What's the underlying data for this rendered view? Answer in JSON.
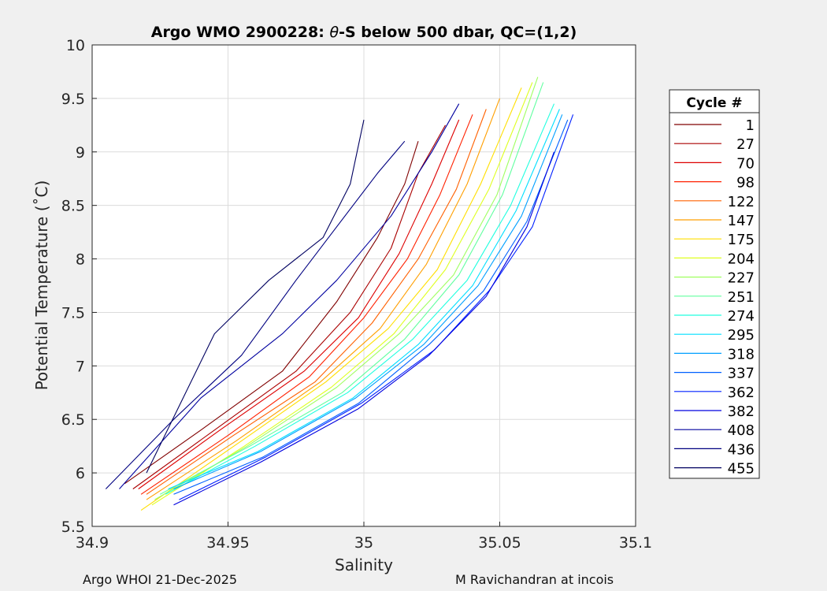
{
  "chart_data": {
    "type": "line",
    "title": "Argo WMO 2900228: θ-S below 500 dbar,  QC=(1,2)",
    "title_parts": {
      "prefix": "Argo WMO 2900228: ",
      "theta": "θ",
      "suffix": "-S below 500 dbar,  QC=(1,2)"
    },
    "xlabel": "Salinity",
    "ylabel": "Potential Temperature (˚C)",
    "xlim": [
      34.9,
      35.1
    ],
    "ylim": [
      5.5,
      10
    ],
    "xticks": [
      34.9,
      34.95,
      35,
      35.05,
      35.1
    ],
    "xtick_labels": [
      "34.9",
      "34.95",
      "35",
      "35.05",
      "35.1"
    ],
    "yticks": [
      5.5,
      6,
      6.5,
      7,
      7.5,
      8,
      8.5,
      9,
      9.5,
      10
    ],
    "ytick_labels": [
      "5.5",
      "6",
      "6.5",
      "7",
      "7.5",
      "8",
      "8.5",
      "9",
      "9.5",
      "10"
    ],
    "grid": true,
    "legend_title": "Cycle #",
    "legend_position": "right",
    "series": [
      {
        "name": "1",
        "color": "#800000",
        "x": [
          34.912,
          34.94,
          34.97,
          34.99,
          35.005,
          35.015,
          35.02
        ],
        "y": [
          5.9,
          6.4,
          6.95,
          7.6,
          8.2,
          8.7,
          9.1
        ]
      },
      {
        "name": "27",
        "color": "#aa0000",
        "x": [
          34.915,
          34.945,
          34.975,
          34.995,
          35.01,
          35.02,
          35.03
        ],
        "y": [
          5.85,
          6.4,
          6.95,
          7.5,
          8.1,
          8.8,
          9.25
        ]
      },
      {
        "name": "70",
        "color": "#dd0000",
        "x": [
          34.917,
          34.947,
          34.978,
          34.998,
          35.013,
          35.025,
          35.035
        ],
        "y": [
          5.85,
          6.4,
          6.95,
          7.45,
          8.05,
          8.7,
          9.3
        ]
      },
      {
        "name": "98",
        "color": "#ff2000",
        "x": [
          34.918,
          34.95,
          34.98,
          35.0,
          35.016,
          35.028,
          35.04
        ],
        "y": [
          5.8,
          6.35,
          6.9,
          7.45,
          8.0,
          8.6,
          9.35
        ]
      },
      {
        "name": "122",
        "color": "#ff6000",
        "x": [
          34.92,
          34.952,
          34.982,
          35.003,
          35.02,
          35.034,
          35.045
        ],
        "y": [
          5.8,
          6.35,
          6.85,
          7.4,
          8.0,
          8.65,
          9.4
        ]
      },
      {
        "name": "147",
        "color": "#ff9f00",
        "x": [
          34.92,
          34.953,
          34.984,
          35.006,
          35.023,
          35.038,
          35.05
        ],
        "y": [
          5.75,
          6.3,
          6.85,
          7.35,
          7.95,
          8.7,
          9.5
        ]
      },
      {
        "name": "175",
        "color": "#ffdf00",
        "x": [
          34.918,
          34.955,
          34.986,
          35.009,
          35.027,
          35.043,
          35.058
        ],
        "y": [
          5.65,
          6.3,
          6.85,
          7.35,
          7.9,
          8.7,
          9.6
        ]
      },
      {
        "name": "204",
        "color": "#dfff20",
        "x": [
          34.922,
          34.956,
          34.988,
          35.011,
          35.03,
          35.046,
          35.062
        ],
        "y": [
          5.7,
          6.25,
          6.8,
          7.3,
          7.9,
          8.65,
          9.65
        ]
      },
      {
        "name": "227",
        "color": "#9fff60",
        "x": [
          34.923,
          34.957,
          34.99,
          35.013,
          35.033,
          35.049,
          35.064
        ],
        "y": [
          5.75,
          6.25,
          6.8,
          7.3,
          7.85,
          8.6,
          9.7
        ]
      },
      {
        "name": "251",
        "color": "#60ff9f",
        "x": [
          34.925,
          34.958,
          34.992,
          35.015,
          35.035,
          35.051,
          35.066
        ],
        "y": [
          5.8,
          6.25,
          6.75,
          7.25,
          7.85,
          8.6,
          9.65
        ]
      },
      {
        "name": "274",
        "color": "#20ffdf",
        "x": [
          34.927,
          34.96,
          34.994,
          35.018,
          35.038,
          35.054,
          35.07
        ],
        "y": [
          5.8,
          6.25,
          6.75,
          7.25,
          7.8,
          8.5,
          9.45
        ]
      },
      {
        "name": "295",
        "color": "#00dfff",
        "x": [
          34.928,
          34.961,
          34.996,
          35.02,
          35.04,
          35.056,
          35.072
        ],
        "y": [
          5.85,
          6.2,
          6.7,
          7.2,
          7.75,
          8.45,
          9.4
        ]
      },
      {
        "name": "318",
        "color": "#009fff",
        "x": [
          34.93,
          34.962,
          34.997,
          35.022,
          35.042,
          35.058,
          35.073
        ],
        "y": [
          5.85,
          6.2,
          6.7,
          7.2,
          7.75,
          8.4,
          9.35
        ]
      },
      {
        "name": "337",
        "color": "#0060ff",
        "x": [
          34.93,
          34.963,
          34.998,
          35.024,
          35.044,
          35.06,
          35.075
        ],
        "y": [
          5.8,
          6.15,
          6.65,
          7.2,
          7.7,
          8.35,
          9.3
        ]
      },
      {
        "name": "362",
        "color": "#0020ff",
        "x": [
          34.932,
          34.964,
          34.999,
          35.026,
          35.046,
          35.062,
          35.077
        ],
        "y": [
          5.75,
          6.15,
          6.65,
          7.15,
          7.7,
          8.3,
          9.35
        ]
      },
      {
        "name": "382",
        "color": "#0000df",
        "x": [
          34.93,
          34.962,
          34.998,
          35.024,
          35.045,
          35.06,
          35.07
        ],
        "y": [
          5.7,
          6.1,
          6.6,
          7.1,
          7.65,
          8.3,
          9.0
        ]
      },
      {
        "name": "408",
        "color": "#00009f",
        "x": [
          34.91,
          34.94,
          34.97,
          34.99,
          35.01,
          35.025,
          35.035
        ],
        "y": [
          5.85,
          6.7,
          7.3,
          7.8,
          8.4,
          9.0,
          9.45
        ]
      },
      {
        "name": "436",
        "color": "#000080",
        "x": [
          34.905,
          34.93,
          34.955,
          34.975,
          34.99,
          35.005,
          35.015
        ],
        "y": [
          5.85,
          6.5,
          7.1,
          7.8,
          8.3,
          8.8,
          9.1
        ]
      },
      {
        "name": "455",
        "color": "#000060",
        "x": [
          34.92,
          34.945,
          34.965,
          34.985,
          34.995,
          35.0
        ],
        "y": [
          6.0,
          7.3,
          7.8,
          8.2,
          8.7,
          9.3
        ]
      }
    ]
  },
  "footer": {
    "left": "Argo WHOI 21-Dec-2025",
    "right": "M Ravichandran at incois"
  }
}
